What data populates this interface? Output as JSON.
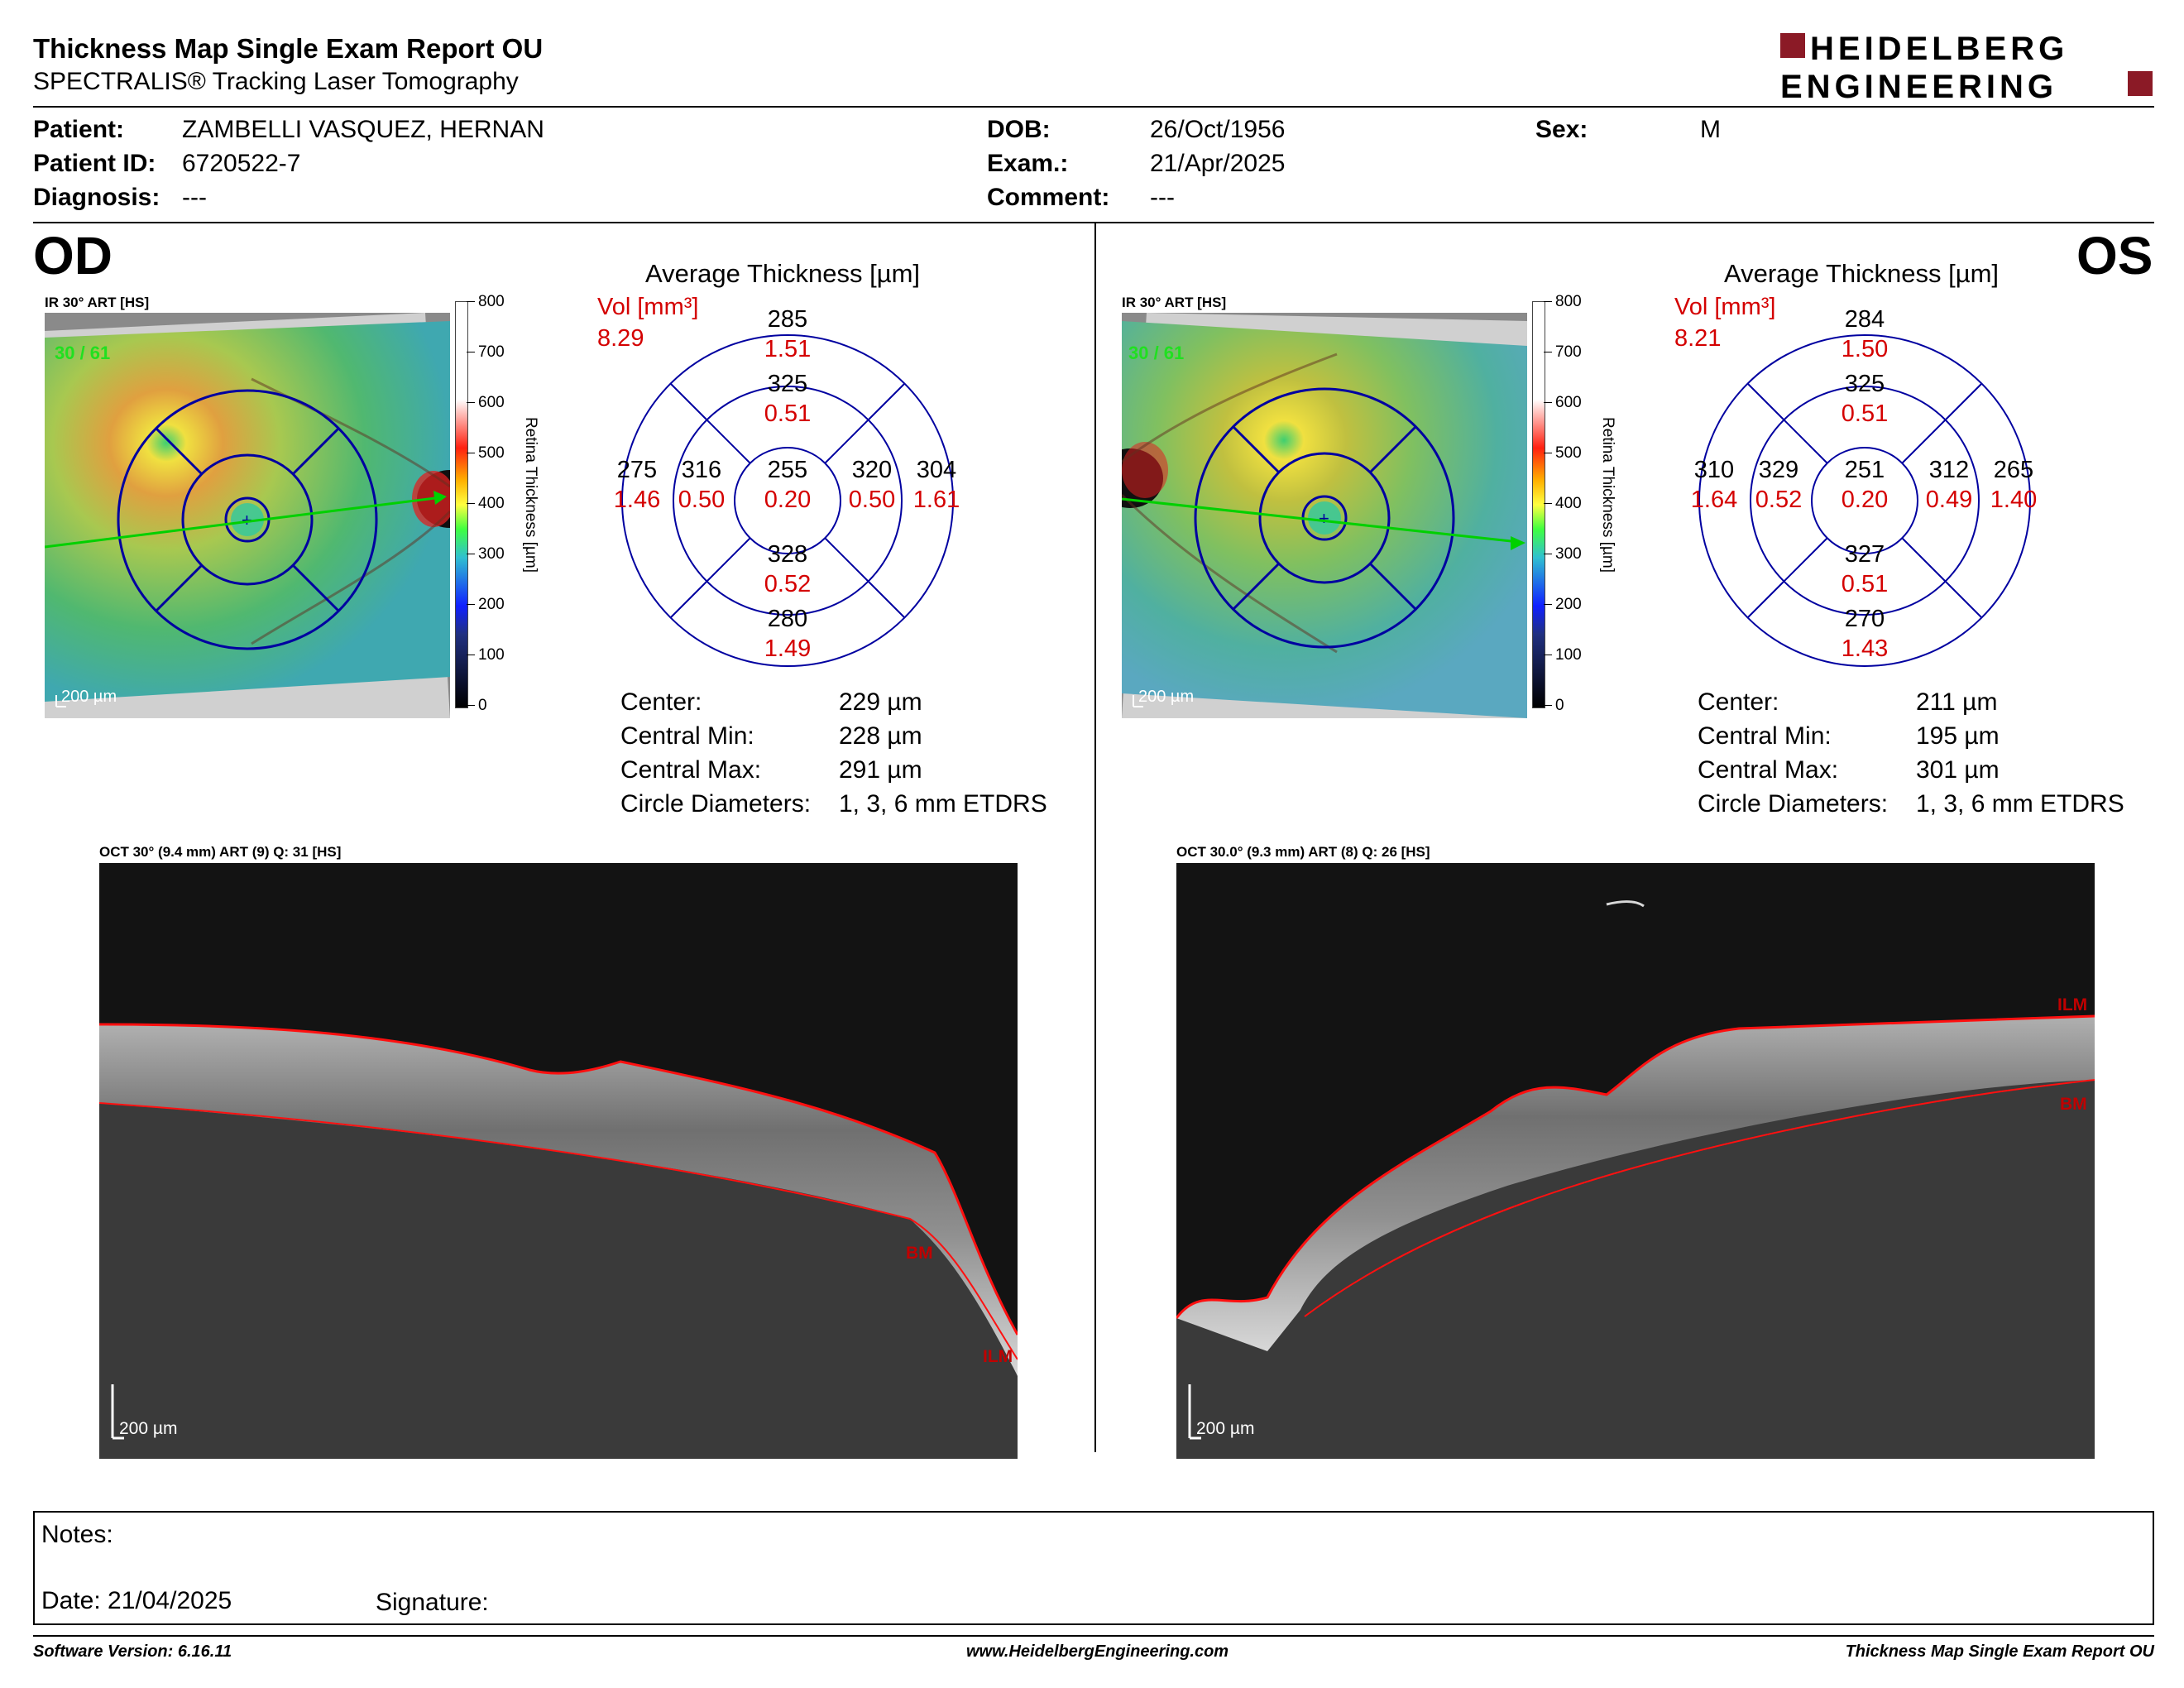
{
  "header": {
    "title": "Thickness Map Single Exam Report OU",
    "subtitle": "SPECTRALIS® Tracking Laser Tomography",
    "brand_line1": "HEIDELBERG",
    "brand_line2": "ENGINEERING",
    "brand_color": "#8b1a26"
  },
  "patient": {
    "patient_label": "Patient:",
    "patient_value": "ZAMBELLI VASQUEZ, HERNAN",
    "id_label": "Patient ID:",
    "id_value": "6720522-7",
    "diagnosis_label": "Diagnosis:",
    "diagnosis_value": "---",
    "dob_label": "DOB:",
    "dob_value": "26/Oct/1956",
    "exam_label": "Exam.:",
    "exam_value": "21/Apr/2025",
    "comment_label": "Comment:",
    "comment_value": "---",
    "sex_label": "Sex:",
    "sex_value": "M"
  },
  "scale": {
    "ticks": [
      "800",
      "700",
      "600",
      "500",
      "400",
      "300",
      "200",
      "100",
      "0"
    ],
    "title": "Retina Thickness [µm]"
  },
  "od": {
    "eye": "OD",
    "ir_label": "IR 30° ART [HS]",
    "frames": "30 / 61",
    "scalebar": "200 µm",
    "avg_title": "Average Thickness [µm]",
    "vol_label": "Vol [mm³]",
    "vol_value": "8.29",
    "sectors": {
      "outer_sup": [
        "285",
        "1.51"
      ],
      "inner_sup": [
        "325",
        "0.51"
      ],
      "outer_temp": [
        "275",
        "1.46"
      ],
      "inner_temp": [
        "316",
        "0.50"
      ],
      "center": [
        "255",
        "0.20"
      ],
      "inner_nasal": [
        "320",
        "0.50"
      ],
      "outer_nasal": [
        "304",
        "1.61"
      ],
      "inner_inf": [
        "328",
        "0.52"
      ],
      "outer_inf": [
        "280",
        "1.49"
      ]
    },
    "stats": [
      {
        "k": "Center:",
        "v": "229 µm"
      },
      {
        "k": "Central Min:",
        "v": "228 µm"
      },
      {
        "k": "Central Max:",
        "v": "291 µm"
      },
      {
        "k": "Circle Diameters:",
        "v": "1, 3, 6 mm ETDRS"
      }
    ],
    "oct_label": "OCT 30° (9.4 mm) ART (9) Q: 31 [HS]",
    "oct_scalebar": "200 µm",
    "layer_bm": "BM",
    "layer_ilm": "ILM"
  },
  "os": {
    "eye": "OS",
    "ir_label": "IR 30° ART [HS]",
    "frames": "30 / 61",
    "scalebar": "200 µm",
    "avg_title": "Average Thickness [µm]",
    "vol_label": "Vol [mm³]",
    "vol_value": "8.21",
    "sectors": {
      "outer_sup": [
        "284",
        "1.50"
      ],
      "inner_sup": [
        "325",
        "0.51"
      ],
      "outer_temp": [
        "310",
        "1.64"
      ],
      "inner_temp": [
        "329",
        "0.52"
      ],
      "center": [
        "251",
        "0.20"
      ],
      "inner_nasal": [
        "312",
        "0.49"
      ],
      "outer_nasal": [
        "265",
        "1.40"
      ],
      "inner_inf": [
        "327",
        "0.51"
      ],
      "outer_inf": [
        "270",
        "1.43"
      ]
    },
    "stats": [
      {
        "k": "Center:",
        "v": "211 µm"
      },
      {
        "k": "Central Min:",
        "v": "195 µm"
      },
      {
        "k": "Central Max:",
        "v": "301 µm"
      },
      {
        "k": "Circle Diameters:",
        "v": "1, 3, 6 mm ETDRS"
      }
    ],
    "oct_label": "OCT 30.0° (9.3 mm) ART (8) Q: 26 [HS]",
    "oct_scalebar": "200 µm",
    "layer_bm": "BM",
    "layer_ilm": "ILM"
  },
  "notes": {
    "notes_label": "Notes:",
    "date_label": "Date: 21/04/2025",
    "signature_label": "Signature:"
  },
  "footer": {
    "software": "Software Version: 6.16.11",
    "website": "www.HeidelbergEngineering.com",
    "report": "Thickness Map Single Exam Report OU"
  },
  "colors": {
    "vol_red": "#d40000",
    "etdrs_blue": "#0000a0",
    "frames_green": "#20e020"
  }
}
